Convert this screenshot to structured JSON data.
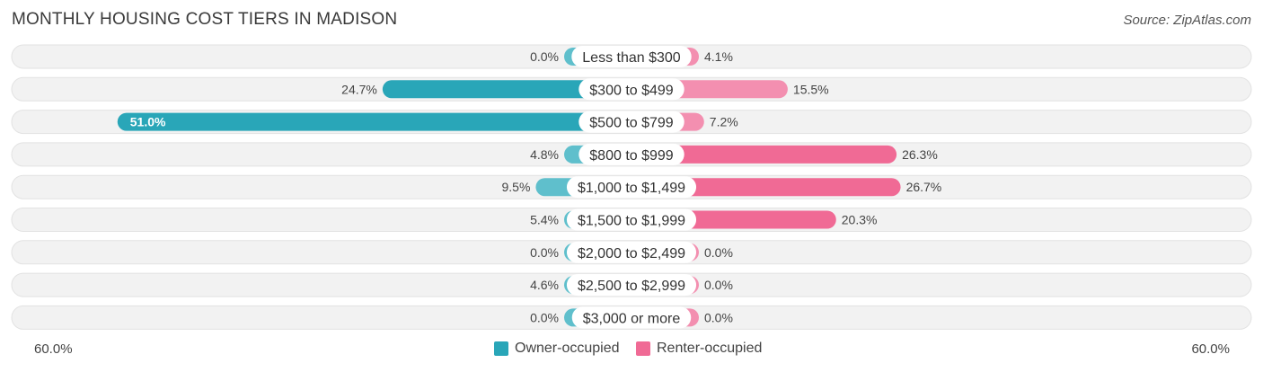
{
  "title": "MONTHLY HOUSING COST TIERS IN MADISON",
  "source": "Source: ZipAtlas.com",
  "colors": {
    "owner": "#5fbfcc",
    "owner_dark": "#29a6b8",
    "renter": "#f38fb0",
    "renter_dark": "#f06a95",
    "row_bg": "#f1f1f1",
    "row_border": "#e2e2e2"
  },
  "legend": {
    "owner_label": "Owner-occupied",
    "renter_label": "Renter-occupied"
  },
  "axis": {
    "left_label": "60.0%",
    "right_label": "60.0%"
  },
  "chart_data": {
    "type": "bar",
    "orientation": "horizontal-diverging",
    "categories": [
      "Less than $300",
      "$300 to $499",
      "$500 to $799",
      "$800 to $999",
      "$1,000 to $1,499",
      "$1,500 to $1,999",
      "$2,000 to $2,499",
      "$2,500 to $2,999",
      "$3,000 or more"
    ],
    "series": [
      {
        "name": "Owner-occupied",
        "values": [
          0.0,
          24.7,
          51.0,
          4.8,
          9.5,
          5.4,
          0.0,
          4.6,
          0.0
        ],
        "labels": [
          "0.0%",
          "24.7%",
          "51.0%",
          "4.8%",
          "9.5%",
          "5.4%",
          "0.0%",
          "4.6%",
          "0.0%"
        ]
      },
      {
        "name": "Renter-occupied",
        "values": [
          4.1,
          15.5,
          7.2,
          26.3,
          26.7,
          20.3,
          0.0,
          0.0,
          0.0
        ],
        "labels": [
          "4.1%",
          "15.5%",
          "7.2%",
          "26.3%",
          "26.7%",
          "20.3%",
          "0.0%",
          "0.0%",
          "0.0%"
        ]
      }
    ],
    "xlim": [
      -60,
      60
    ],
    "legend_position": "bottom-center"
  }
}
